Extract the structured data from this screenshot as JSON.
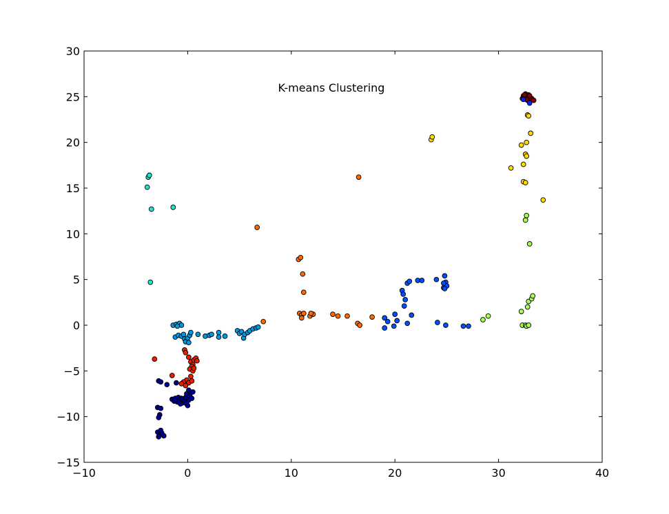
{
  "chart_data": {
    "type": "scatter",
    "title": "K-means Clustering",
    "xlabel": "",
    "ylabel": "",
    "xlim": [
      -10,
      40
    ],
    "ylim": [
      -15,
      30
    ],
    "xticks": [
      -10,
      0,
      10,
      20,
      30,
      40
    ],
    "yticks": [
      -15,
      -10,
      -5,
      0,
      5,
      10,
      15,
      20,
      25,
      30
    ],
    "xtick_labels": [
      "−10",
      "0",
      "10",
      "20",
      "30",
      "40"
    ],
    "ytick_labels": [
      "−15",
      "−10",
      "−5",
      "0",
      "5",
      "10",
      "15",
      "20",
      "25",
      "30"
    ],
    "grid": false,
    "legend": "none",
    "series": [
      {
        "color": "#00008f",
        "points": [
          [
            -1.5,
            -8.1
          ],
          [
            -1.3,
            -8.3
          ],
          [
            -1.2,
            -8.0
          ],
          [
            -1.0,
            -8.4
          ],
          [
            -0.9,
            -7.9
          ],
          [
            -0.8,
            -8.2
          ],
          [
            -0.6,
            -8.0
          ],
          [
            -0.5,
            -8.5
          ],
          [
            -0.4,
            -8.1
          ],
          [
            -0.3,
            -8.3
          ],
          [
            -0.2,
            -7.9
          ],
          [
            -0.1,
            -8.6
          ],
          [
            0.0,
            -8.8
          ],
          [
            0.1,
            -8.2
          ],
          [
            0.2,
            -7.7
          ],
          [
            0.3,
            -7.4
          ],
          [
            0.1,
            -7.1
          ],
          [
            -0.1,
            -7.5
          ],
          [
            0.4,
            -8.0
          ],
          [
            -0.7,
            -8.6
          ],
          [
            -2.9,
            -9.0
          ],
          [
            -2.7,
            -9.8
          ],
          [
            -2.8,
            -10.1
          ],
          [
            -2.6,
            -9.1
          ],
          [
            -2.9,
            -11.7
          ],
          [
            -2.7,
            -12.0
          ],
          [
            -2.8,
            -12.2
          ],
          [
            -2.5,
            -11.8
          ],
          [
            -2.3,
            -12.1
          ],
          [
            -2.6,
            -11.5
          ],
          [
            -2.8,
            -6.1
          ],
          [
            -2.6,
            -6.2
          ],
          [
            -1.1,
            -6.3
          ],
          [
            -2.0,
            -6.5
          ],
          [
            -1.2,
            -8.2
          ],
          [
            0.5,
            -7.3
          ]
        ]
      },
      {
        "color": "#ee1c00",
        "points": [
          [
            -0.3,
            -2.7
          ],
          [
            -0.2,
            -3.0
          ],
          [
            0.1,
            -3.5
          ],
          [
            0.3,
            -4.0
          ],
          [
            0.5,
            -4.3
          ],
          [
            0.6,
            -3.8
          ],
          [
            0.8,
            -3.6
          ],
          [
            0.9,
            -3.9
          ],
          [
            0.4,
            -4.5
          ],
          [
            0.2,
            -4.8
          ],
          [
            0.5,
            -5.0
          ],
          [
            0.3,
            -5.6
          ],
          [
            -0.1,
            -6.0
          ],
          [
            0.1,
            -6.3
          ],
          [
            -0.4,
            -6.2
          ],
          [
            -0.6,
            -6.4
          ],
          [
            -0.2,
            -6.6
          ],
          [
            0.4,
            -6.1
          ],
          [
            -1.5,
            -5.5
          ],
          [
            -3.2,
            -3.7
          ],
          [
            0.6,
            -4.7
          ]
        ]
      },
      {
        "color": "#0099e6",
        "points": [
          [
            -1.4,
            0.0
          ],
          [
            -1.1,
            0.1
          ],
          [
            -0.8,
            0.2
          ],
          [
            -0.6,
            0.0
          ],
          [
            -1.0,
            -0.1
          ],
          [
            -1.2,
            -1.3
          ],
          [
            -0.9,
            -1.1
          ],
          [
            -0.6,
            -1.2
          ],
          [
            -0.3,
            -1.5
          ],
          [
            -0.2,
            -1.8
          ],
          [
            0.0,
            -1.4
          ],
          [
            0.2,
            -1.1
          ],
          [
            0.3,
            -0.8
          ],
          [
            0.1,
            -1.9
          ],
          [
            -0.4,
            -1.0
          ],
          [
            1.0,
            -1.0
          ],
          [
            1.7,
            -1.2
          ],
          [
            2.1,
            -1.1
          ],
          [
            2.3,
            -1.0
          ],
          [
            3.0,
            -0.8
          ],
          [
            3.0,
            -1.3
          ],
          [
            3.6,
            -1.2
          ],
          [
            4.8,
            -0.6
          ],
          [
            5.0,
            -0.9
          ],
          [
            5.2,
            -0.7
          ],
          [
            5.4,
            -1.4
          ],
          [
            5.5,
            -1.0
          ],
          [
            5.8,
            -0.8
          ],
          [
            6.0,
            -0.6
          ],
          [
            6.3,
            -0.4
          ],
          [
            6.6,
            -0.3
          ],
          [
            6.8,
            -0.2
          ]
        ]
      },
      {
        "color": "#1ee5d2",
        "points": [
          [
            -3.8,
            16.2
          ],
          [
            -3.7,
            16.4
          ],
          [
            -3.9,
            15.1
          ],
          [
            -3.5,
            12.7
          ],
          [
            -1.4,
            12.9
          ],
          [
            -3.6,
            4.7
          ]
        ]
      },
      {
        "color": "#ff6a00",
        "points": [
          [
            6.7,
            10.7
          ],
          [
            7.3,
            0.4
          ],
          [
            10.7,
            7.2
          ],
          [
            10.9,
            7.4
          ],
          [
            11.1,
            5.6
          ],
          [
            11.2,
            3.6
          ],
          [
            10.8,
            1.3
          ],
          [
            11.0,
            1.1
          ],
          [
            11.2,
            1.3
          ],
          [
            11.0,
            0.8
          ],
          [
            11.8,
            1.0
          ],
          [
            12.1,
            1.2
          ],
          [
            11.9,
            1.3
          ],
          [
            14.0,
            1.2
          ],
          [
            14.5,
            1.0
          ],
          [
            15.4,
            1.0
          ],
          [
            16.5,
            16.2
          ],
          [
            16.4,
            0.2
          ],
          [
            16.6,
            0.0
          ],
          [
            17.8,
            0.9
          ]
        ]
      },
      {
        "color": "#0050ff",
        "points": [
          [
            19.0,
            0.8
          ],
          [
            19.3,
            0.4
          ],
          [
            19.0,
            -0.3
          ],
          [
            19.9,
            -0.1
          ],
          [
            20.0,
            1.2
          ],
          [
            20.2,
            0.5
          ],
          [
            20.7,
            3.8
          ],
          [
            20.8,
            3.4
          ],
          [
            21.0,
            2.8
          ],
          [
            21.2,
            4.6
          ],
          [
            21.4,
            4.8
          ],
          [
            21.6,
            1.1
          ],
          [
            20.9,
            2.1
          ],
          [
            21.2,
            0.2
          ],
          [
            22.2,
            4.9
          ],
          [
            22.6,
            4.9
          ],
          [
            24.0,
            5.0
          ],
          [
            24.1,
            0.3
          ],
          [
            24.7,
            4.1
          ],
          [
            24.8,
            5.4
          ],
          [
            24.9,
            4.7
          ],
          [
            25.0,
            4.3
          ],
          [
            24.7,
            4.6
          ],
          [
            24.9,
            0.0
          ],
          [
            26.6,
            -0.1
          ],
          [
            27.1,
            -0.1
          ],
          [
            24.8,
            4.0
          ]
        ]
      },
      {
        "color": "#a6ff4f",
        "points": [
          [
            28.5,
            0.6
          ],
          [
            29.0,
            1.0
          ],
          [
            32.2,
            1.5
          ],
          [
            32.3,
            0.0
          ],
          [
            32.6,
            0.0
          ],
          [
            32.7,
            -0.1
          ],
          [
            32.9,
            0.0
          ],
          [
            32.8,
            2.0
          ],
          [
            32.9,
            2.6
          ],
          [
            33.2,
            2.9
          ],
          [
            33.3,
            3.2
          ],
          [
            32.6,
            11.5
          ],
          [
            32.7,
            12.0
          ],
          [
            33.0,
            8.9
          ]
        ]
      },
      {
        "color": "#ffdb00",
        "points": [
          [
            23.5,
            20.3
          ],
          [
            23.6,
            20.6
          ],
          [
            31.2,
            17.2
          ],
          [
            32.2,
            19.7
          ],
          [
            32.4,
            17.6
          ],
          [
            32.6,
            18.7
          ],
          [
            32.7,
            18.5
          ],
          [
            32.7,
            20.0
          ],
          [
            33.1,
            21.0
          ],
          [
            32.4,
            15.7
          ],
          [
            32.6,
            15.6
          ],
          [
            32.8,
            23.0
          ],
          [
            32.9,
            22.9
          ],
          [
            34.3,
            13.7
          ]
        ]
      },
      {
        "color": "#7f0000",
        "points": [
          [
            32.3,
            24.8
          ],
          [
            32.4,
            25.1
          ],
          [
            32.5,
            24.9
          ],
          [
            32.6,
            25.3
          ],
          [
            32.7,
            25.0
          ],
          [
            32.8,
            24.6
          ],
          [
            32.9,
            25.2
          ],
          [
            33.0,
            24.9
          ],
          [
            33.1,
            24.7
          ],
          [
            33.2,
            24.8
          ],
          [
            33.4,
            24.6
          ],
          [
            32.5,
            25.2
          ],
          [
            32.7,
            24.7
          ],
          [
            33.0,
            25.1
          ]
        ]
      },
      {
        "color": "#0a1fff",
        "points": [
          [
            32.4,
            24.7
          ],
          [
            33.0,
            24.3
          ]
        ]
      }
    ]
  }
}
